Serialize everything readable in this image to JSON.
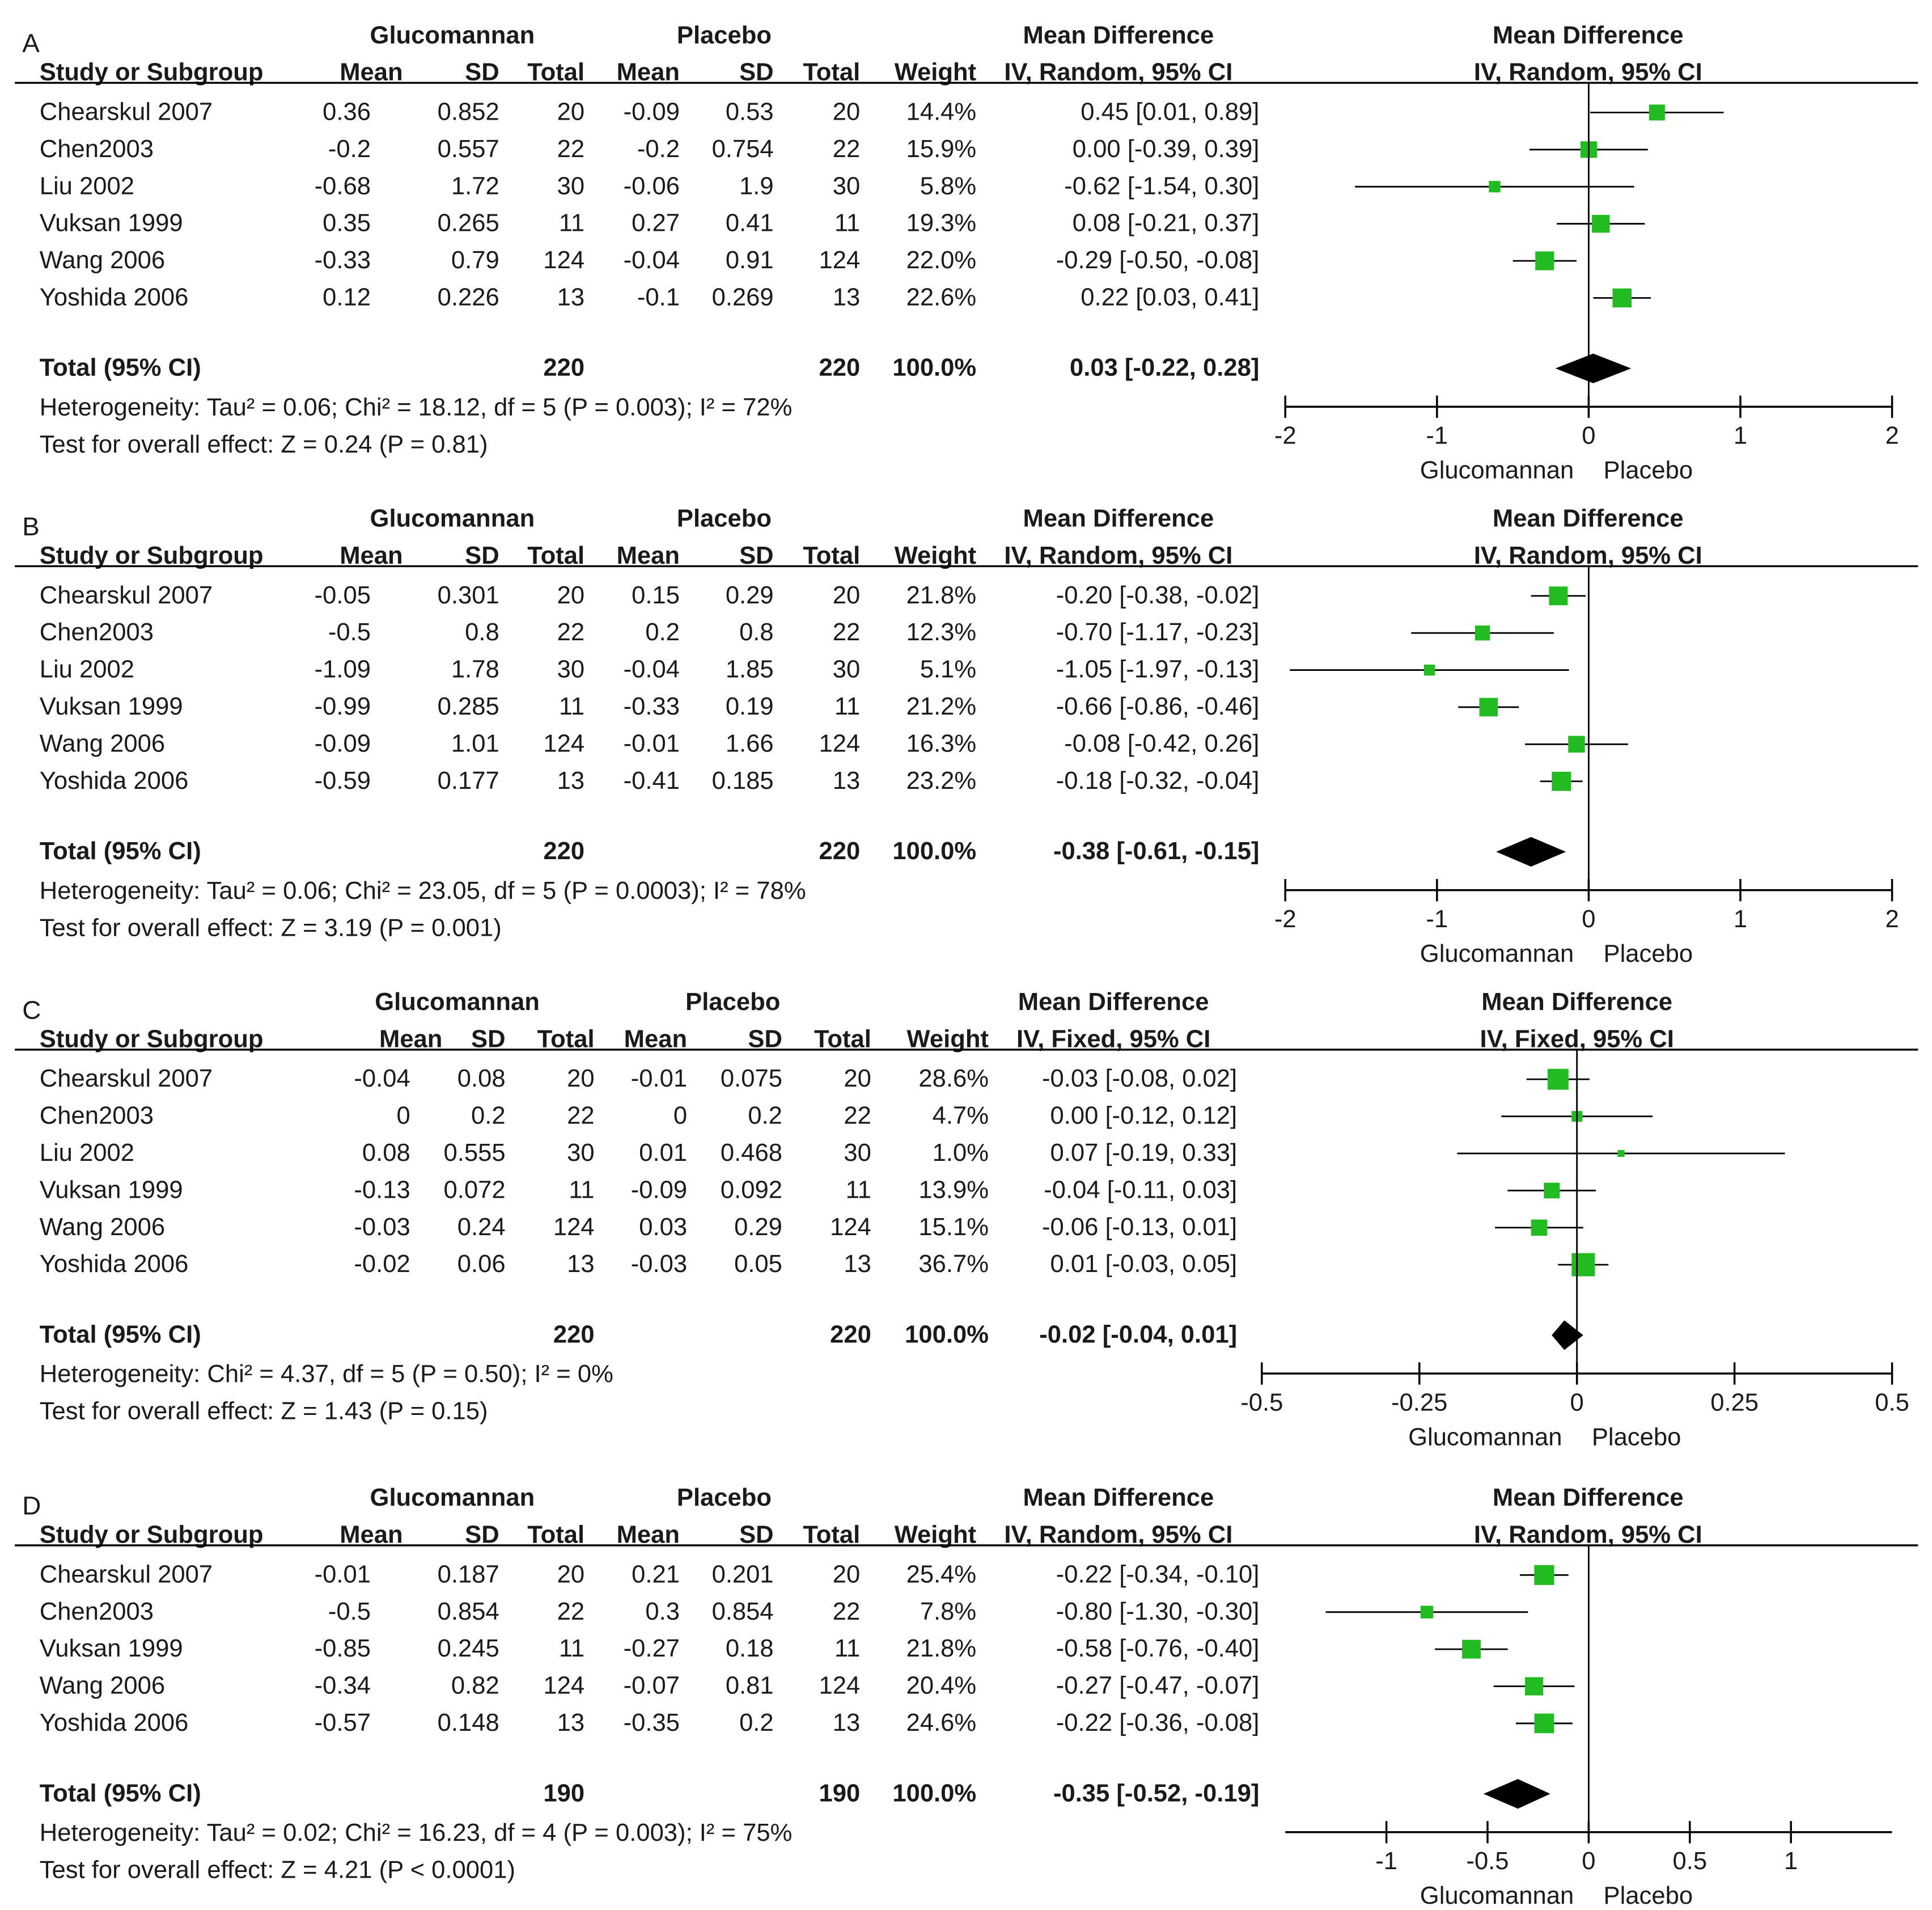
{
  "chart_data": [
    {
      "type": "forest",
      "panel_label": "A",
      "group_labels": [
        "Glucomannan",
        "Placebo"
      ],
      "column_headers": [
        "Study or Subgroup",
        "Mean",
        "SD",
        "Total",
        "Mean",
        "SD",
        "Total",
        "Weight"
      ],
      "effect_header": [
        "Mean Difference",
        "IV, Random, 95% CI"
      ],
      "plot_header": [
        "Mean Difference",
        "IV, Random, 95% CI"
      ],
      "studies": [
        {
          "name": "Chearskul 2007",
          "cells": [
            "0.36",
            "0.852",
            "20",
            "-0.09",
            "0.53",
            "20",
            "14.4%"
          ],
          "ci_text": "0.45 [0.01, 0.89]",
          "md": 0.45,
          "lo": 0.01,
          "hi": 0.89,
          "weight": 14.4
        },
        {
          "name": "Chen2003",
          "cells": [
            "-0.2",
            "0.557",
            "22",
            "-0.2",
            "0.754",
            "22",
            "15.9%"
          ],
          "ci_text": "0.00 [-0.39, 0.39]",
          "md": 0.0,
          "lo": -0.39,
          "hi": 0.39,
          "weight": 15.9
        },
        {
          "name": "Liu 2002",
          "cells": [
            "-0.68",
            "1.72",
            "30",
            "-0.06",
            "1.9",
            "30",
            "5.8%"
          ],
          "ci_text": "-0.62 [-1.54, 0.30]",
          "md": -0.62,
          "lo": -1.54,
          "hi": 0.3,
          "weight": 5.8
        },
        {
          "name": "Vuksan 1999",
          "cells": [
            "0.35",
            "0.265",
            "11",
            "0.27",
            "0.41",
            "11",
            "19.3%"
          ],
          "ci_text": "0.08 [-0.21, 0.37]",
          "md": 0.08,
          "lo": -0.21,
          "hi": 0.37,
          "weight": 19.3
        },
        {
          "name": "Wang 2006",
          "cells": [
            "-0.33",
            "0.79",
            "124",
            "-0.04",
            "0.91",
            "124",
            "22.0%"
          ],
          "ci_text": "-0.29 [-0.50, -0.08]",
          "md": -0.29,
          "lo": -0.5,
          "hi": -0.08,
          "weight": 22.0
        },
        {
          "name": "Yoshida 2006",
          "cells": [
            "0.12",
            "0.226",
            "13",
            "-0.1",
            "0.269",
            "13",
            "22.6%"
          ],
          "ci_text": "0.22 [0.03, 0.41]",
          "md": 0.22,
          "lo": 0.03,
          "hi": 0.41,
          "weight": 22.6
        }
      ],
      "total": {
        "label": "Total (95% CI)",
        "n_treat": "220",
        "n_ctrl": "220",
        "weight": "100.0%",
        "ci_text": "0.03 [-0.22, 0.28]",
        "md": 0.03,
        "lo": -0.22,
        "hi": 0.28
      },
      "heterogeneity": "Heterogeneity: Tau² = 0.06; Chi² = 18.12, df = 5 (P = 0.003); I² = 72%",
      "overall_effect": "Test for overall effect: Z = 0.24 (P = 0.81)",
      "xlim": [
        -2,
        2
      ],
      "ticks": [
        -2,
        -1,
        0,
        1,
        2
      ],
      "tick_labels": [
        "-2",
        "-1",
        "0",
        "1",
        "2"
      ],
      "favours": [
        "Glucomannan",
        "Placebo"
      ]
    },
    {
      "type": "forest",
      "panel_label": "B",
      "group_labels": [
        "Glucomannan",
        "Placebo"
      ],
      "column_headers": [
        "Study or Subgroup",
        "Mean",
        "SD",
        "Total",
        "Mean",
        "SD",
        "Total",
        "Weight"
      ],
      "effect_header": [
        "Mean Difference",
        "IV, Random, 95% CI"
      ],
      "plot_header": [
        "Mean Difference",
        "IV, Random, 95% CI"
      ],
      "studies": [
        {
          "name": "Chearskul 2007",
          "cells": [
            "-0.05",
            "0.301",
            "20",
            "0.15",
            "0.29",
            "20",
            "21.8%"
          ],
          "ci_text": "-0.20 [-0.38, -0.02]",
          "md": -0.2,
          "lo": -0.38,
          "hi": -0.02,
          "weight": 21.8
        },
        {
          "name": "Chen2003",
          "cells": [
            "-0.5",
            "0.8",
            "22",
            "0.2",
            "0.8",
            "22",
            "12.3%"
          ],
          "ci_text": "-0.70 [-1.17, -0.23]",
          "md": -0.7,
          "lo": -1.17,
          "hi": -0.23,
          "weight": 12.3
        },
        {
          "name": "Liu 2002",
          "cells": [
            "-1.09",
            "1.78",
            "30",
            "-0.04",
            "1.85",
            "30",
            "5.1%"
          ],
          "ci_text": "-1.05 [-1.97, -0.13]",
          "md": -1.05,
          "lo": -1.97,
          "hi": -0.13,
          "weight": 5.1
        },
        {
          "name": "Vuksan 1999",
          "cells": [
            "-0.99",
            "0.285",
            "11",
            "-0.33",
            "0.19",
            "11",
            "21.2%"
          ],
          "ci_text": "-0.66 [-0.86, -0.46]",
          "md": -0.66,
          "lo": -0.86,
          "hi": -0.46,
          "weight": 21.2
        },
        {
          "name": "Wang 2006",
          "cells": [
            "-0.09",
            "1.01",
            "124",
            "-0.01",
            "1.66",
            "124",
            "16.3%"
          ],
          "ci_text": "-0.08 [-0.42, 0.26]",
          "md": -0.08,
          "lo": -0.42,
          "hi": 0.26,
          "weight": 16.3
        },
        {
          "name": "Yoshida 2006",
          "cells": [
            "-0.59",
            "0.177",
            "13",
            "-0.41",
            "0.185",
            "13",
            "23.2%"
          ],
          "ci_text": "-0.18 [-0.32, -0.04]",
          "md": -0.18,
          "lo": -0.32,
          "hi": -0.04,
          "weight": 23.2
        }
      ],
      "total": {
        "label": "Total (95% CI)",
        "n_treat": "220",
        "n_ctrl": "220",
        "weight": "100.0%",
        "ci_text": "-0.38 [-0.61, -0.15]",
        "md": -0.38,
        "lo": -0.61,
        "hi": -0.15
      },
      "heterogeneity": "Heterogeneity: Tau² = 0.06; Chi² = 23.05, df = 5 (P = 0.0003); I² = 78%",
      "overall_effect": "Test for overall effect: Z = 3.19 (P = 0.001)",
      "xlim": [
        -2,
        2
      ],
      "ticks": [
        -2,
        -1,
        0,
        1,
        2
      ],
      "tick_labels": [
        "-2",
        "-1",
        "0",
        "1",
        "2"
      ],
      "favours": [
        "Glucomannan",
        "Placebo"
      ]
    },
    {
      "type": "forest",
      "panel_label": "C",
      "group_labels": [
        "Glucomannan",
        "Placebo"
      ],
      "column_headers": [
        "Study or Subgroup",
        "Mean",
        "SD",
        "Total",
        "Mean",
        "SD",
        "Total",
        "Weight"
      ],
      "effect_header": [
        "Mean Difference",
        "IV, Fixed, 95% CI"
      ],
      "plot_header": [
        "Mean Difference",
        "IV, Fixed, 95% CI"
      ],
      "studies": [
        {
          "name": "Chearskul 2007",
          "cells": [
            "-0.04",
            "0.08",
            "20",
            "-0.01",
            "0.075",
            "20",
            "28.6%"
          ],
          "ci_text": "-0.03 [-0.08, 0.02]",
          "md": -0.03,
          "lo": -0.08,
          "hi": 0.02,
          "weight": 28.6
        },
        {
          "name": "Chen2003",
          "cells": [
            "0",
            "0.2",
            "22",
            "0",
            "0.2",
            "22",
            "4.7%"
          ],
          "ci_text": "0.00 [-0.12, 0.12]",
          "md": 0.0,
          "lo": -0.12,
          "hi": 0.12,
          "weight": 4.7
        },
        {
          "name": "Liu 2002",
          "cells": [
            "0.08",
            "0.555",
            "30",
            "0.01",
            "0.468",
            "30",
            "1.0%"
          ],
          "ci_text": "0.07 [-0.19, 0.33]",
          "md": 0.07,
          "lo": -0.19,
          "hi": 0.33,
          "weight": 1.0
        },
        {
          "name": "Vuksan 1999",
          "cells": [
            "-0.13",
            "0.072",
            "11",
            "-0.09",
            "0.092",
            "11",
            "13.9%"
          ],
          "ci_text": "-0.04 [-0.11, 0.03]",
          "md": -0.04,
          "lo": -0.11,
          "hi": 0.03,
          "weight": 13.9
        },
        {
          "name": "Wang 2006",
          "cells": [
            "-0.03",
            "0.24",
            "124",
            "0.03",
            "0.29",
            "124",
            "15.1%"
          ],
          "ci_text": "-0.06 [-0.13, 0.01]",
          "md": -0.06,
          "lo": -0.13,
          "hi": 0.01,
          "weight": 15.1
        },
        {
          "name": "Yoshida 2006",
          "cells": [
            "-0.02",
            "0.06",
            "13",
            "-0.03",
            "0.05",
            "13",
            "36.7%"
          ],
          "ci_text": "0.01 [-0.03, 0.05]",
          "md": 0.01,
          "lo": -0.03,
          "hi": 0.05,
          "weight": 36.7
        }
      ],
      "total": {
        "label": "Total (95% CI)",
        "n_treat": "220",
        "n_ctrl": "220",
        "weight": "100.0%",
        "ci_text": "-0.02 [-0.04, 0.01]",
        "md": -0.02,
        "lo": -0.04,
        "hi": 0.01
      },
      "heterogeneity": "Heterogeneity: Chi² = 4.37, df = 5 (P = 0.50); I² = 0%",
      "overall_effect": "Test for overall effect: Z = 1.43 (P = 0.15)",
      "xlim": [
        -0.5,
        0.5
      ],
      "ticks": [
        -0.5,
        -0.25,
        0,
        0.25,
        0.5
      ],
      "tick_labels": [
        "-0.5",
        "-0.25",
        "0",
        "0.25",
        "0.5"
      ],
      "favours": [
        "Glucomannan",
        "Placebo"
      ]
    },
    {
      "type": "forest",
      "panel_label": "D",
      "group_labels": [
        "Glucomannan",
        "Placebo"
      ],
      "column_headers": [
        "Study or Subgroup",
        "Mean",
        "SD",
        "Total",
        "Mean",
        "SD",
        "Total",
        "Weight"
      ],
      "effect_header": [
        "Mean Difference",
        "IV, Random, 95% CI"
      ],
      "plot_header": [
        "Mean Difference",
        "IV, Random, 95% CI"
      ],
      "studies": [
        {
          "name": "Chearskul 2007",
          "cells": [
            "-0.01",
            "0.187",
            "20",
            "0.21",
            "0.201",
            "20",
            "25.4%"
          ],
          "ci_text": "-0.22 [-0.34, -0.10]",
          "md": -0.22,
          "lo": -0.34,
          "hi": -0.1,
          "weight": 25.4
        },
        {
          "name": "Chen2003",
          "cells": [
            "-0.5",
            "0.854",
            "22",
            "0.3",
            "0.854",
            "22",
            "7.8%"
          ],
          "ci_text": "-0.80 [-1.30, -0.30]",
          "md": -0.8,
          "lo": -1.3,
          "hi": -0.3,
          "weight": 7.8
        },
        {
          "name": "Vuksan 1999",
          "cells": [
            "-0.85",
            "0.245",
            "11",
            "-0.27",
            "0.18",
            "11",
            "21.8%"
          ],
          "ci_text": "-0.58 [-0.76, -0.40]",
          "md": -0.58,
          "lo": -0.76,
          "hi": -0.4,
          "weight": 21.8
        },
        {
          "name": "Wang 2006",
          "cells": [
            "-0.34",
            "0.82",
            "124",
            "-0.07",
            "0.81",
            "124",
            "20.4%"
          ],
          "ci_text": "-0.27 [-0.47, -0.07]",
          "md": -0.27,
          "lo": -0.47,
          "hi": -0.07,
          "weight": 20.4
        },
        {
          "name": "Yoshida 2006",
          "cells": [
            "-0.57",
            "0.148",
            "13",
            "-0.35",
            "0.2",
            "13",
            "24.6%"
          ],
          "ci_text": "-0.22 [-0.36, -0.08]",
          "md": -0.22,
          "lo": -0.36,
          "hi": -0.08,
          "weight": 24.6
        }
      ],
      "total": {
        "label": "Total (95% CI)",
        "n_treat": "190",
        "n_ctrl": "190",
        "weight": "100.0%",
        "ci_text": "-0.35 [-0.52, -0.19]",
        "md": -0.35,
        "lo": -0.52,
        "hi": -0.19
      },
      "heterogeneity": "Heterogeneity: Tau² = 0.02; Chi² = 16.23, df = 4 (P = 0.003); I² = 75%",
      "overall_effect": "Test for overall effect: Z = 4.21 (P < 0.0001)",
      "xlim": [
        -1.5,
        1.5
      ],
      "ticks": [
        -1,
        -0.5,
        0,
        0.5,
        1
      ],
      "tick_labels": [
        "-1",
        "-0.5",
        "0",
        "0.5",
        "1"
      ],
      "favours": [
        "Glucomannan",
        "Placebo"
      ]
    }
  ],
  "colors": {
    "marker": "#22bb22",
    "diamond": "#000000",
    "text": "#1a1a1a",
    "header": "#333333"
  }
}
